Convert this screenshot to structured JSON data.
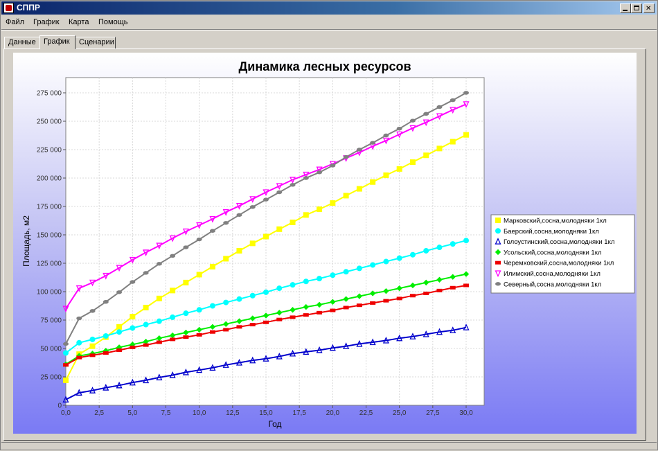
{
  "window": {
    "title": "СППР",
    "controls": {
      "minimize": "minimize-icon",
      "maximize": "maximize-icon",
      "close": "close-icon"
    }
  },
  "menu": {
    "items": [
      "Файл",
      "График",
      "Карта",
      "Помощь"
    ]
  },
  "tabs": {
    "items": [
      "Данные",
      "График",
      "Сценарии"
    ],
    "active": 1
  },
  "colors": {
    "titlebar": "#0a246a",
    "series": [
      "#ffff00",
      "#00ffff",
      "#0000cc",
      "#00ee00",
      "#ee0000",
      "#ff00ff",
      "#808080"
    ]
  },
  "chart_data": {
    "type": "line",
    "title": "Динамика лесных ресурсов",
    "xlabel": "Год",
    "ylabel": "Площадь, м2",
    "xlim": [
      0,
      30
    ],
    "ylim": [
      0,
      275000
    ],
    "xticks": [
      "0,0",
      "2,5",
      "5,0",
      "7,5",
      "10,0",
      "12,5",
      "15,0",
      "17,5",
      "20,0",
      "22,5",
      "25,0",
      "27,5",
      "30,0"
    ],
    "yticks": [
      "0",
      "25 000",
      "50 000",
      "75 000",
      "100 000",
      "125 000",
      "150 000",
      "175 000",
      "200 000",
      "225 000",
      "250 000",
      "275 000"
    ],
    "grid": true,
    "legend_position": "right",
    "series": [
      {
        "name": "Марковский,сосна,молодняки 1кл",
        "color": "#ffff00",
        "marker": "square",
        "x": [
          0,
          1,
          2,
          3,
          4,
          5,
          6,
          7,
          8,
          9,
          10,
          11,
          12,
          13,
          14,
          15,
          16,
          17,
          18,
          19,
          20,
          21,
          22,
          23,
          24,
          25,
          26,
          27,
          28,
          29,
          30
        ],
        "values": [
          22000,
          45000,
          52000,
          60000,
          69000,
          78000,
          86000,
          94000,
          101000,
          108000,
          115000,
          122000,
          129000,
          136000,
          142500,
          148500,
          155000,
          161000,
          167500,
          172500,
          178000,
          184500,
          190500,
          196500,
          202500,
          208000,
          214000,
          220000,
          226000,
          232000,
          238000
        ]
      },
      {
        "name": "Баерский,сосна,молодняки 1кл",
        "color": "#00ffff",
        "marker": "circle",
        "x": [
          0,
          1,
          2,
          3,
          4,
          5,
          6,
          7,
          8,
          9,
          10,
          11,
          12,
          13,
          14,
          15,
          16,
          17,
          18,
          19,
          20,
          21,
          22,
          23,
          24,
          25,
          26,
          27,
          28,
          29,
          30
        ],
        "values": [
          46000,
          55000,
          58000,
          61000,
          64500,
          68000,
          71000,
          74000,
          77500,
          81000,
          84000,
          87500,
          90500,
          93500,
          96500,
          99500,
          103000,
          106000,
          109000,
          111500,
          114500,
          117500,
          120500,
          123500,
          126500,
          129500,
          132500,
          136000,
          139000,
          142000,
          145000
        ]
      },
      {
        "name": "Голоустинский,сосна,молодняки 1кл",
        "color": "#0000cc",
        "marker": "triangle-up",
        "x": [
          0,
          1,
          2,
          3,
          4,
          5,
          6,
          7,
          8,
          9,
          10,
          11,
          12,
          13,
          14,
          15,
          16,
          17,
          18,
          19,
          20,
          21,
          22,
          23,
          24,
          25,
          26,
          27,
          28,
          29,
          30
        ],
        "values": [
          5000,
          11000,
          13000,
          15500,
          17500,
          20000,
          22000,
          24500,
          26500,
          29000,
          31000,
          33000,
          35500,
          37500,
          39500,
          41000,
          43000,
          45500,
          47000,
          48500,
          50500,
          52000,
          54000,
          55500,
          57000,
          59000,
          60500,
          62500,
          64500,
          66000,
          68500
        ]
      },
      {
        "name": "Усольский,сосна,молодняки 1кл",
        "color": "#00ee00",
        "marker": "diamond",
        "x": [
          0,
          1,
          2,
          3,
          4,
          5,
          6,
          7,
          8,
          9,
          10,
          11,
          12,
          13,
          14,
          15,
          16,
          17,
          18,
          19,
          20,
          21,
          22,
          23,
          24,
          25,
          26,
          27,
          28,
          29,
          30
        ],
        "values": [
          36000,
          43500,
          45500,
          48000,
          51000,
          53500,
          56000,
          59000,
          61500,
          64000,
          66500,
          69000,
          71500,
          74000,
          76500,
          79000,
          81500,
          84000,
          86500,
          88500,
          91000,
          93500,
          96000,
          98500,
          100500,
          103000,
          105500,
          108000,
          110500,
          113000,
          115500
        ]
      },
      {
        "name": "Черемховский,сосна,молодняки 1кл",
        "color": "#ee0000",
        "marker": "rect",
        "x": [
          0,
          1,
          2,
          3,
          4,
          5,
          6,
          7,
          8,
          9,
          10,
          11,
          12,
          13,
          14,
          15,
          16,
          17,
          18,
          19,
          20,
          21,
          22,
          23,
          24,
          25,
          26,
          27,
          28,
          29,
          30
        ],
        "values": [
          35500,
          42000,
          44000,
          46000,
          48500,
          51000,
          53000,
          55500,
          58000,
          60000,
          62000,
          64500,
          66500,
          69000,
          71000,
          73000,
          75500,
          77500,
          79500,
          81500,
          83500,
          86000,
          88000,
          90000,
          92000,
          94000,
          96500,
          98500,
          101000,
          103500,
          105500
        ]
      },
      {
        "name": "Илимский,сосна,молодняки 1кл",
        "color": "#ff00ff",
        "marker": "triangle-down",
        "x": [
          0,
          1,
          2,
          3,
          4,
          5,
          6,
          7,
          8,
          9,
          10,
          11,
          12,
          13,
          14,
          15,
          16,
          17,
          18,
          19,
          20,
          21,
          22,
          23,
          24,
          25,
          26,
          27,
          28,
          29,
          30
        ],
        "values": [
          85000,
          103000,
          108000,
          114000,
          121000,
          128000,
          134500,
          140500,
          147000,
          153000,
          158500,
          164000,
          170000,
          175500,
          181500,
          187500,
          193000,
          198500,
          203000,
          207500,
          212500,
          217500,
          222500,
          228000,
          233000,
          238500,
          244000,
          249000,
          254500,
          260000,
          265000
        ]
      },
      {
        "name": "Северный,сосна,молодняки 1кл",
        "color": "#808080",
        "marker": "ellipse",
        "x": [
          0,
          1,
          2,
          3,
          4,
          5,
          6,
          7,
          8,
          9,
          10,
          11,
          12,
          13,
          14,
          15,
          16,
          17,
          18,
          19,
          20,
          21,
          22,
          23,
          24,
          25,
          26,
          27,
          28,
          29,
          30
        ],
        "values": [
          54000,
          76500,
          83000,
          91000,
          99500,
          108500,
          116500,
          124500,
          131500,
          139000,
          146000,
          153500,
          160500,
          167500,
          174500,
          181000,
          187500,
          194000,
          200000,
          205000,
          211000,
          218500,
          225000,
          231000,
          237500,
          243500,
          250500,
          256500,
          262500,
          268500,
          275000
        ]
      }
    ]
  }
}
